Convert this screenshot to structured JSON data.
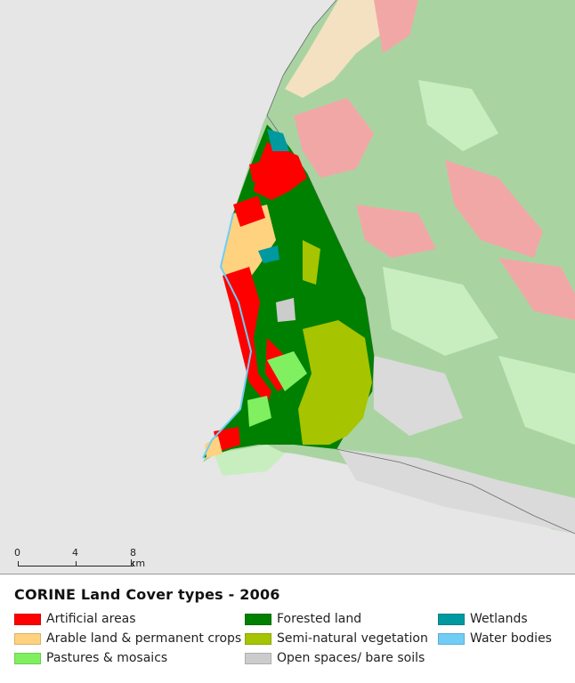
{
  "legend": {
    "title": "CORINE Land Cover types - 2006",
    "items": [
      {
        "label": "Artificial areas",
        "color": "#ff0000"
      },
      {
        "label": "Arable land & permanent crops",
        "color": "#ffd27f"
      },
      {
        "label": "Pastures & mosaics",
        "color": "#80f060"
      },
      {
        "label": "Forested land",
        "color": "#008000"
      },
      {
        "label": "Semi-natural vegetation",
        "color": "#a6c400"
      },
      {
        "label": "Open spaces/ bare soils",
        "color": "#cccccc"
      },
      {
        "label": "Wetlands",
        "color": "#00999f"
      },
      {
        "label": "Water bodies",
        "color": "#70cdf5"
      }
    ]
  },
  "scalebar": {
    "labels": [
      "0",
      "4",
      "8 km"
    ]
  },
  "map": {
    "background_sea_color": "#e6e6e6",
    "outside_area_colors": {
      "forest": "#a9d4a2",
      "artificial": "#f2a7a7",
      "arable": "#f3e1c1",
      "pasture": "#c8eec0",
      "open": "#dadada"
    }
  }
}
